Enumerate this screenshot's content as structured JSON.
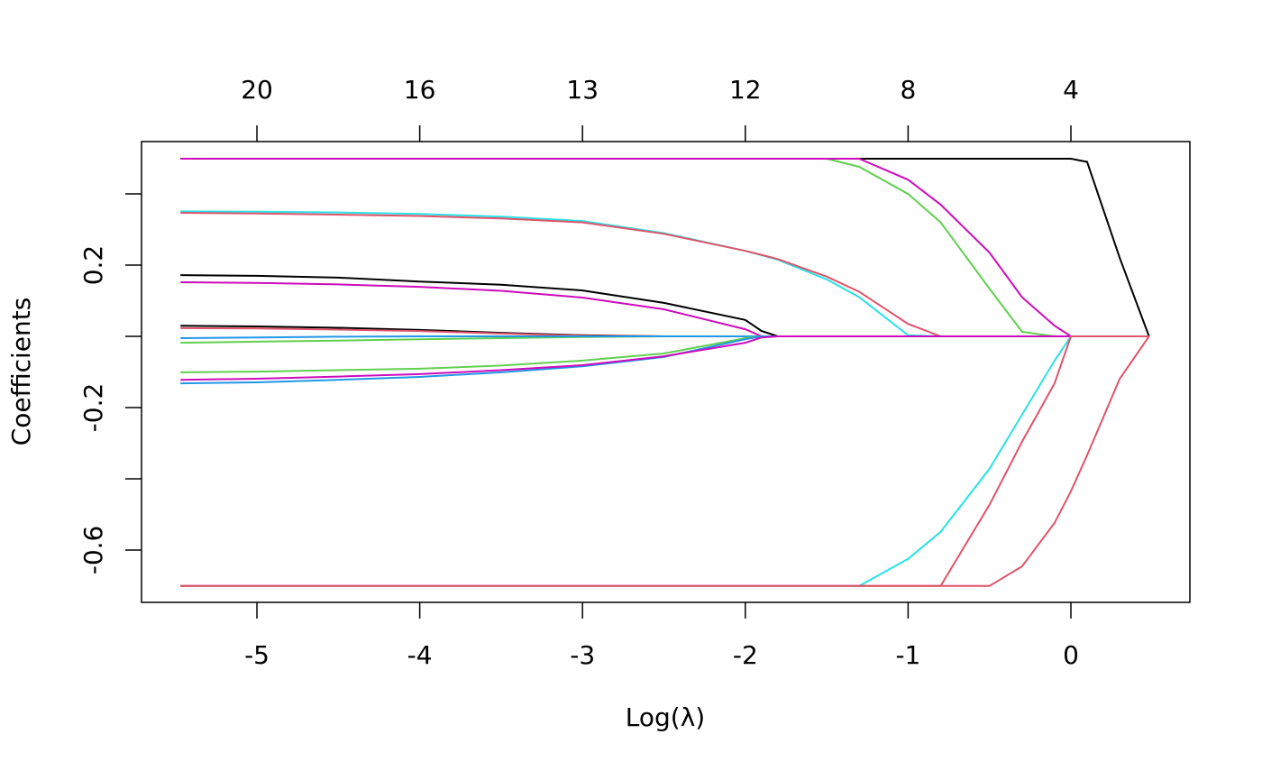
{
  "chart_data": {
    "type": "line",
    "xlabel": "Log(λ)",
    "ylabel": "Coefficients",
    "xlim": [
      -5.709,
      0.731
    ],
    "ylim": [
      -0.747,
      0.547
    ],
    "xticks": [
      -5,
      -4,
      -3,
      -2,
      -1,
      0
    ],
    "x2ticks": [
      {
        "value": -5,
        "label": "20"
      },
      {
        "value": -4,
        "label": "16"
      },
      {
        "value": -3,
        "label": "13"
      },
      {
        "value": -2,
        "label": "12"
      },
      {
        "value": -1,
        "label": "8"
      },
      {
        "value": 0,
        "label": "4"
      }
    ],
    "yticks": [
      0.2,
      -0.2,
      -0.6
    ],
    "yticks_unlabeled": [
      0.4,
      0,
      -0.4
    ],
    "x": [
      -5.47,
      -5,
      -4.5,
      -4,
      -3.5,
      -3,
      -2.5,
      -2,
      -1.9,
      -1.8,
      -1.5,
      -1.3,
      -1.0,
      -0.8,
      -0.5,
      -0.3,
      -0.1,
      0,
      0.1,
      0.3,
      0.48
    ],
    "series": [
      {
        "color": "#000000",
        "values": [
          0.499,
          0.499,
          0.499,
          0.499,
          0.499,
          0.499,
          0.499,
          0.499,
          0.499,
          0.499,
          0.499,
          0.499,
          0.499,
          0.499,
          0.499,
          0.499,
          0.499,
          0.499,
          0.49,
          0.22,
          0
        ]
      },
      {
        "color": "#61D04F",
        "values": [
          0.499,
          0.499,
          0.499,
          0.499,
          0.499,
          0.499,
          0.499,
          0.499,
          0.499,
          0.499,
          0.499,
          0.476,
          0.4,
          0.32,
          0.134,
          0.013,
          0,
          0,
          0,
          0,
          0
        ]
      },
      {
        "color": "#CD0BBC",
        "values": [
          0.499,
          0.499,
          0.499,
          0.499,
          0.499,
          0.499,
          0.499,
          0.499,
          0.499,
          0.499,
          0.499,
          0.499,
          0.44,
          0.37,
          0.235,
          0.11,
          0.03,
          0,
          0,
          0,
          0
        ]
      },
      {
        "color": "#28E2E5",
        "values": [
          0.351,
          0.35,
          0.348,
          0.344,
          0.336,
          0.324,
          0.29,
          0.24,
          0.228,
          0.215,
          0.16,
          0.11,
          0.003,
          0,
          0,
          0,
          0,
          0,
          0,
          0,
          0
        ]
      },
      {
        "color": "#DF536B",
        "values": [
          0.347,
          0.345,
          0.342,
          0.338,
          0.331,
          0.32,
          0.288,
          0.24,
          0.229,
          0.217,
          0.168,
          0.125,
          0.035,
          0,
          0,
          0,
          0,
          0,
          0,
          0,
          0
        ]
      },
      {
        "color": "#000000",
        "values": [
          0.172,
          0.17,
          0.165,
          0.154,
          0.145,
          0.129,
          0.094,
          0.046,
          0.015,
          0,
          0,
          0,
          0,
          0,
          0,
          0,
          0,
          0,
          0,
          0,
          0
        ]
      },
      {
        "color": "#CD0BBC",
        "values": [
          0.152,
          0.15,
          0.146,
          0.139,
          0.128,
          0.109,
          0.076,
          0.02,
          0,
          0,
          0,
          0,
          0,
          0,
          0,
          0,
          0,
          0,
          0,
          0,
          0
        ]
      },
      {
        "color": "#000000",
        "values": [
          0.03,
          0.028,
          0.024,
          0.018,
          0.01,
          0.003,
          0,
          0,
          0,
          0,
          0,
          0,
          0,
          0,
          0,
          0,
          0,
          0,
          0,
          0,
          0
        ]
      },
      {
        "color": "#DF536B",
        "values": [
          0.023,
          0.022,
          0.019,
          0.015,
          0.008,
          0.002,
          0,
          0,
          0,
          0,
          0,
          0,
          0,
          0,
          0,
          0,
          0,
          0,
          0,
          0,
          0
        ]
      },
      {
        "color": "#61D04F",
        "values": [
          -0.018,
          -0.015,
          -0.012,
          -0.008,
          -0.005,
          -0.002,
          0,
          0,
          0,
          0,
          0,
          0,
          0,
          0,
          0,
          0,
          0,
          0,
          0,
          0,
          0
        ]
      },
      {
        "color": "#2297E6",
        "values": [
          -0.005,
          -0.003,
          -0.001,
          0,
          0,
          0,
          0,
          0,
          0,
          0,
          0,
          0,
          0,
          0,
          0,
          0,
          0,
          0,
          0,
          0,
          0
        ]
      },
      {
        "color": "#61D04F",
        "values": [
          -0.101,
          -0.099,
          -0.095,
          -0.091,
          -0.082,
          -0.068,
          -0.048,
          -0.005,
          0,
          0,
          0,
          0,
          0,
          0,
          0,
          0,
          0,
          0,
          0,
          0,
          0
        ]
      },
      {
        "color": "#2297E6",
        "values": [
          -0.132,
          -0.129,
          -0.122,
          -0.114,
          -0.101,
          -0.084,
          -0.058,
          -0.008,
          0,
          0,
          0,
          0,
          0,
          0,
          0,
          0,
          0,
          0,
          0,
          0,
          0
        ]
      },
      {
        "color": "#CD0BBC",
        "values": [
          -0.122,
          -0.119,
          -0.113,
          -0.106,
          -0.095,
          -0.081,
          -0.056,
          -0.018,
          -0.003,
          0,
          0,
          0,
          0,
          0,
          0,
          0,
          0,
          0,
          0,
          0,
          0
        ]
      },
      {
        "color": "#28E2E5",
        "values": [
          -0.701,
          -0.701,
          -0.701,
          -0.701,
          -0.701,
          -0.701,
          -0.701,
          -0.701,
          -0.701,
          -0.701,
          -0.701,
          -0.701,
          -0.625,
          -0.549,
          -0.372,
          -0.22,
          -0.068,
          0,
          0,
          0,
          0
        ]
      },
      {
        "color": "#DF536B",
        "values": [
          -0.701,
          -0.701,
          -0.701,
          -0.701,
          -0.701,
          -0.701,
          -0.701,
          -0.701,
          -0.701,
          -0.701,
          -0.701,
          -0.701,
          -0.701,
          -0.701,
          -0.473,
          -0.296,
          -0.132,
          0,
          0,
          0,
          0
        ]
      },
      {
        "color": "#DF536B",
        "values": [
          -0.701,
          -0.701,
          -0.701,
          -0.701,
          -0.701,
          -0.701,
          -0.701,
          -0.701,
          -0.701,
          -0.701,
          -0.701,
          -0.701,
          -0.701,
          -0.701,
          -0.701,
          -0.646,
          -0.524,
          -0.435,
          -0.334,
          -0.119,
          0
        ]
      }
    ]
  }
}
